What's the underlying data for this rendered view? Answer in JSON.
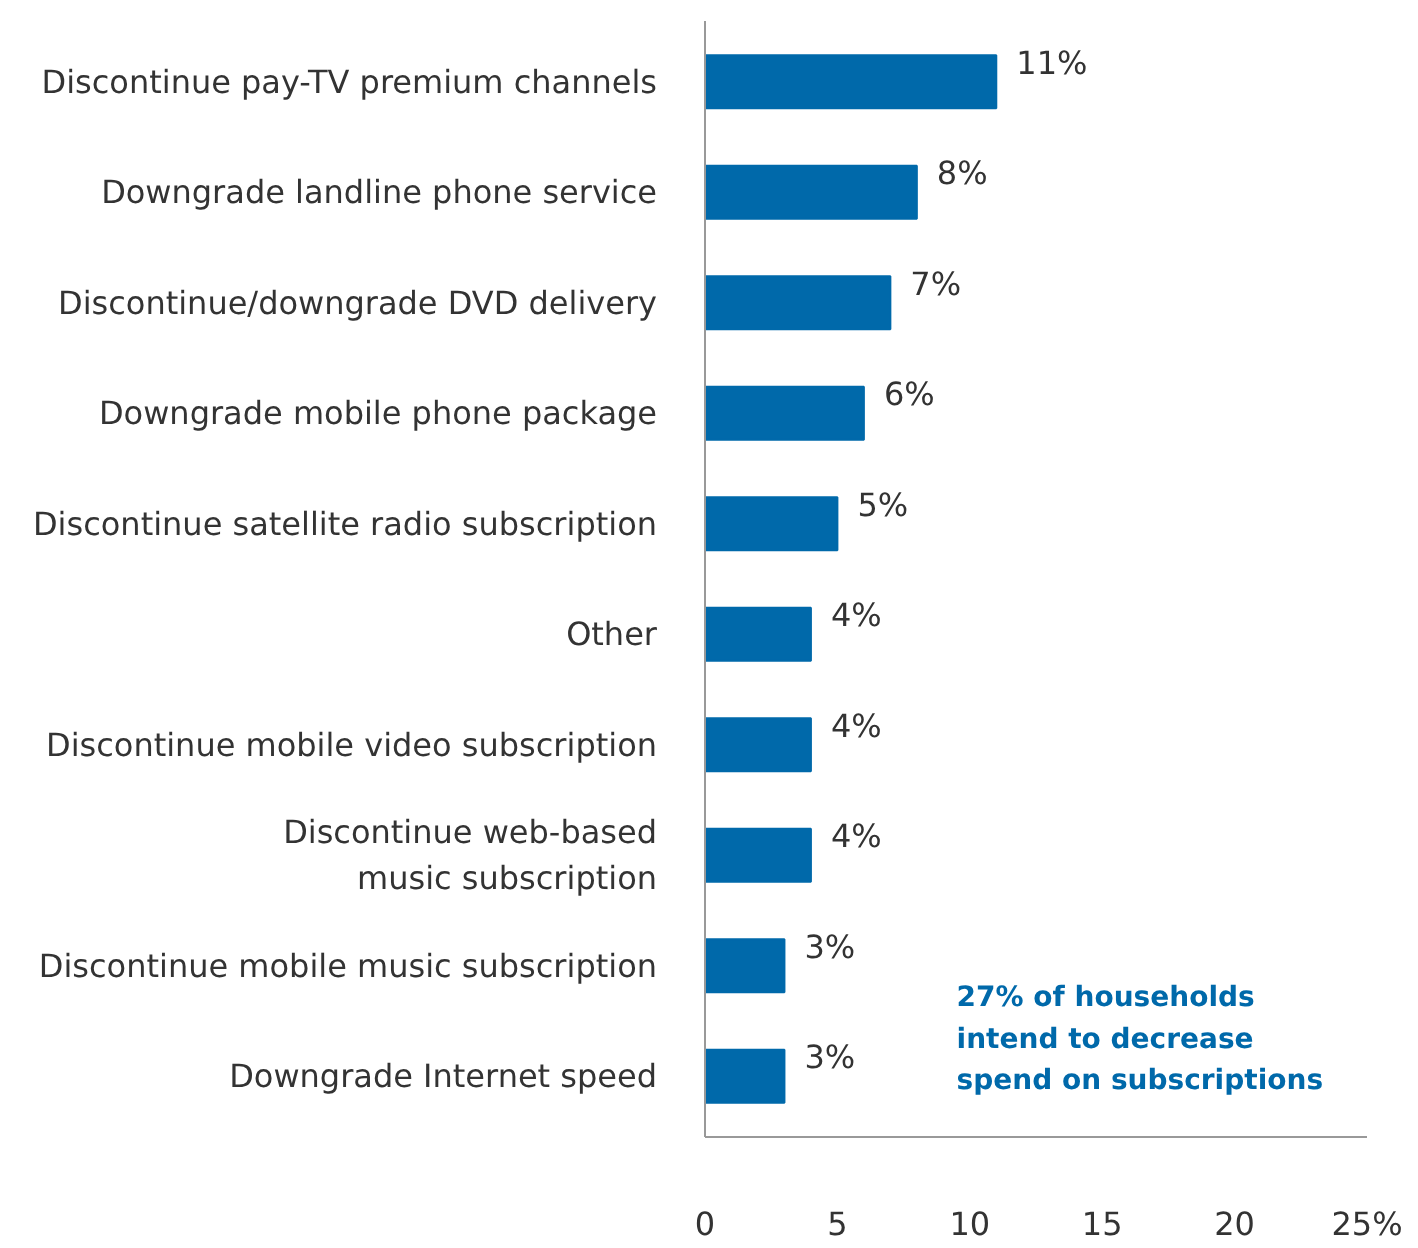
{
  "chart_data": {
    "type": "bar",
    "orientation": "horizontal",
    "categories": [
      "Discontinue pay-TV premium channels",
      "Downgrade landline phone service",
      "Discontinue/downgrade DVD delivery",
      "Downgrade mobile phone package",
      "Discontinue satellite radio subscription",
      "Other",
      "Discontinue mobile video subscription",
      "Discontinue web-based\nmusic subscription",
      "Discontinue mobile music subscription",
      "Downgrade Internet speed"
    ],
    "values": [
      11,
      8,
      7,
      6,
      5,
      4,
      4,
      4,
      3,
      3
    ],
    "value_labels": [
      "11%",
      "8%",
      "7%",
      "6%",
      "5%",
      "4%",
      "4%",
      "4%",
      "3%",
      "3%"
    ],
    "color": "#0069aa",
    "xlim": [
      0,
      25
    ],
    "xticks": [
      0,
      5,
      10,
      15,
      20,
      {
        "value": 25,
        "label": "25%"
      }
    ],
    "grid": false,
    "annotations": [
      "27% of households\nintend to decrease\nspend on subscriptions"
    ]
  }
}
